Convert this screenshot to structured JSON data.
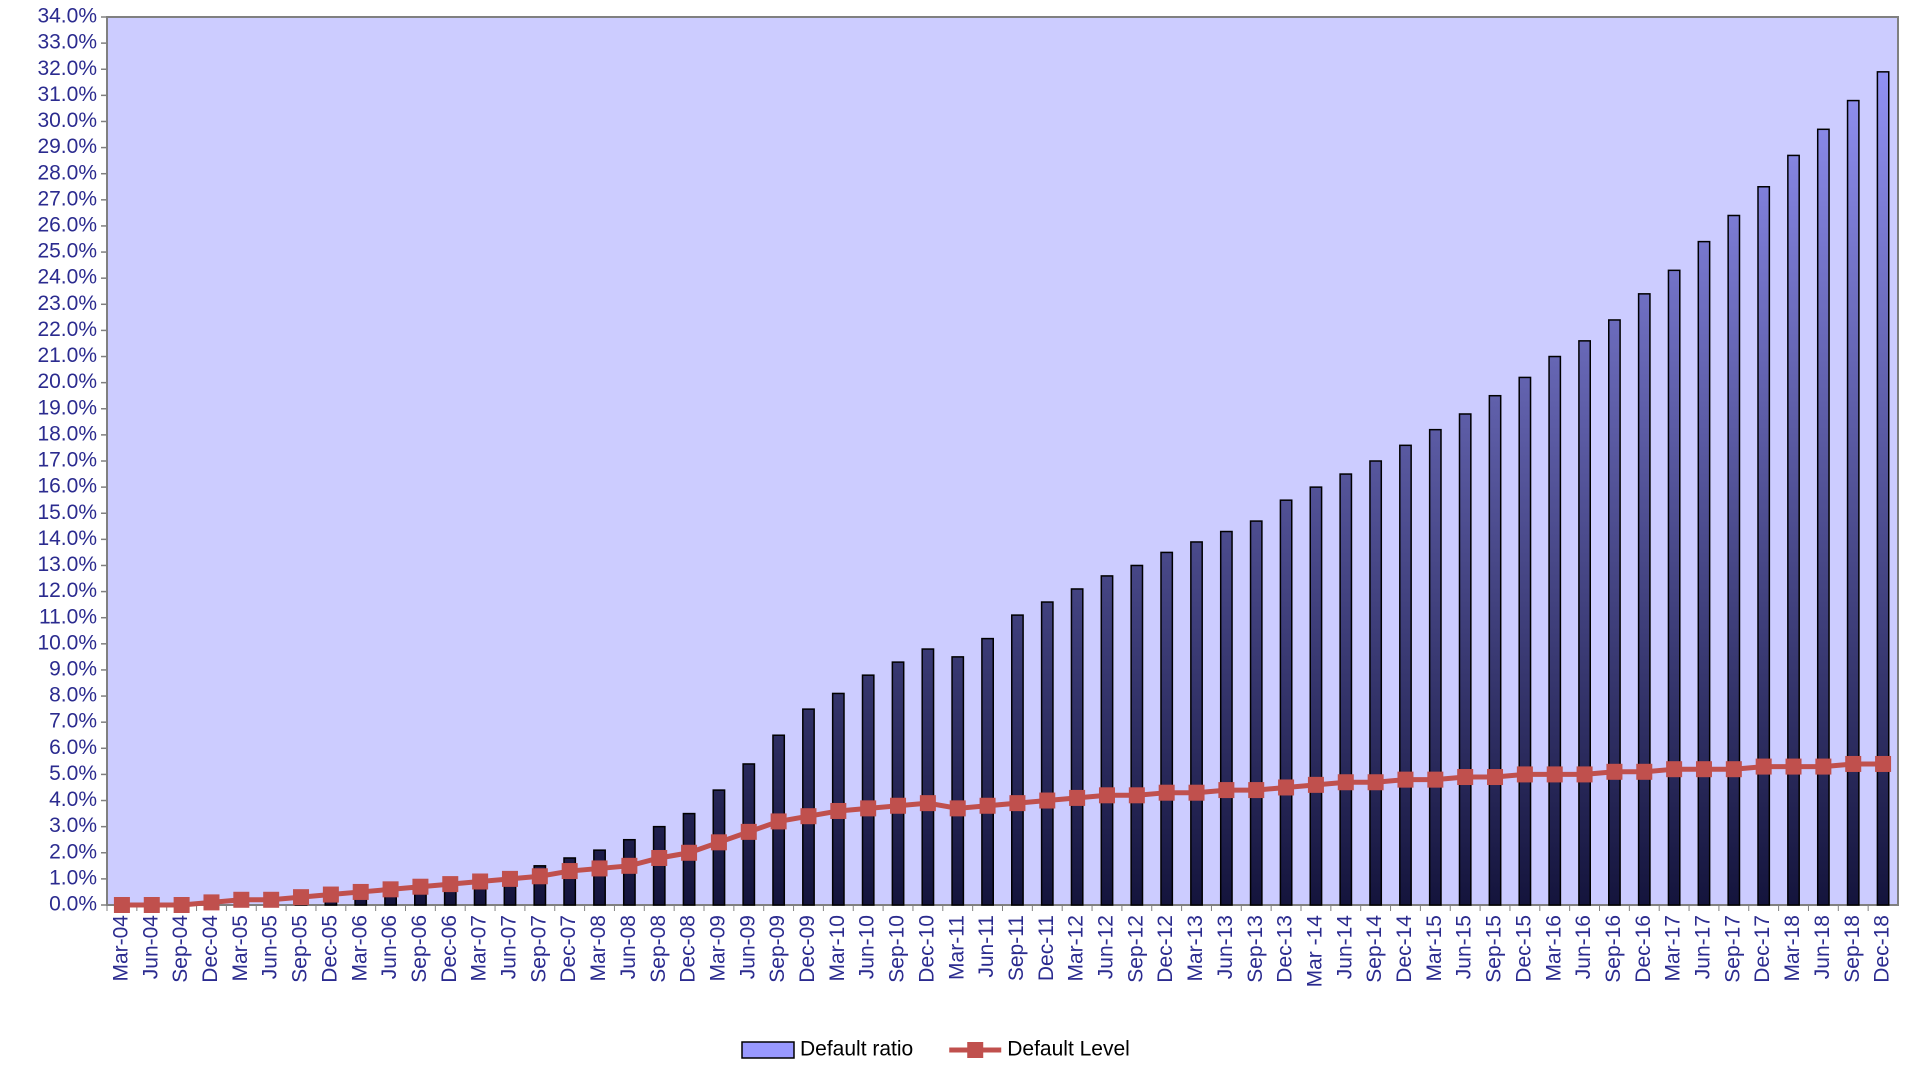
{
  "chart_data": {
    "type": "bar-line",
    "categories": [
      "Mar-04",
      "Jun-04",
      "Sep-04",
      "Dec-04",
      "Mar-05",
      "Jun-05",
      "Sep-05",
      "Dec-05",
      "Mar-06",
      "Jun-06",
      "Sep-06",
      "Dec-06",
      "Mar-07",
      "Jun-07",
      "Sep-07",
      "Dec-07",
      "Mar-08",
      "Jun-08",
      "Sep-08",
      "Dec-08",
      "Mar-09",
      "Jun-09",
      "Sep-09",
      "Dec-09",
      "Mar-10",
      "Jun-10",
      "Sep-10",
      "Dec-10",
      "Mar-11",
      "Jun-11",
      "Sep-11",
      "Dec-11",
      "Mar-12",
      "Jun-12",
      "Sep-12",
      "Dec-12",
      "Mar-13",
      "Jun-13",
      "Sep-13",
      "Dec-13",
      "Mar -14",
      "Jun-14",
      "Sep-14",
      "Dec-14",
      "Mar-15",
      "Jun-15",
      "Sep-15",
      "Dec-15",
      "Mar-16",
      "Jun-16",
      "Sep-16",
      "Dec-16",
      "Mar-17",
      "Jun-17",
      "Sep-17",
      "Dec-17",
      "Mar-18",
      "Jun-18",
      "Sep-18",
      "Dec-18"
    ],
    "series": [
      {
        "name": "Default ratio",
        "type": "bar",
        "color": "#9999ff",
        "values": [
          0,
          0,
          0,
          0,
          0.1,
          0.1,
          0.2,
          0.3,
          0.4,
          0.5,
          0.6,
          0.7,
          0.8,
          1.0,
          1.5,
          1.8,
          2.1,
          2.5,
          3.0,
          3.5,
          4.4,
          5.4,
          6.5,
          7.5,
          8.1,
          8.8,
          9.3,
          9.8,
          9.5,
          10.2,
          11.1,
          11.6,
          12.1,
          12.6,
          13.0,
          13.5,
          13.9,
          14.3,
          14.7,
          15.5,
          16.0,
          16.5,
          17.0,
          17.6,
          18.2,
          18.8,
          19.5,
          20.2,
          21.0,
          21.6,
          22.4,
          23.4,
          24.3,
          25.4,
          26.4,
          27.5,
          28.7,
          29.7,
          30.8,
          31.9
        ]
      },
      {
        "name": "Default Level",
        "type": "line",
        "color": "#c0504d",
        "values": [
          0,
          0,
          0,
          0.1,
          0.2,
          0.2,
          0.3,
          0.4,
          0.5,
          0.6,
          0.7,
          0.8,
          0.9,
          1.0,
          1.1,
          1.3,
          1.4,
          1.5,
          1.8,
          2.0,
          2.4,
          2.8,
          3.2,
          3.4,
          3.6,
          3.7,
          3.8,
          3.9,
          3.7,
          3.8,
          3.9,
          4.0,
          4.1,
          4.2,
          4.2,
          4.3,
          4.3,
          4.4,
          4.4,
          4.5,
          4.6,
          4.7,
          4.7,
          4.8,
          4.8,
          4.9,
          4.9,
          5.0,
          5.0,
          5.0,
          5.1,
          5.1,
          5.2,
          5.2,
          5.2,
          5.3,
          5.3,
          5.3,
          5.4,
          5.4
        ]
      }
    ],
    "ylim": [
      0,
      34
    ],
    "yticks": [
      {
        "value": 0,
        "label": "0.0%"
      },
      {
        "value": 1,
        "label": "1.0%"
      },
      {
        "value": 2,
        "label": "2.0%"
      },
      {
        "value": 3,
        "label": "3.0%"
      },
      {
        "value": 4,
        "label": "4.0%"
      },
      {
        "value": 5,
        "label": "5.0%"
      },
      {
        "value": 6,
        "label": "6.0%"
      },
      {
        "value": 7,
        "label": "7.0%"
      },
      {
        "value": 8,
        "label": "8.0%"
      },
      {
        "value": 9,
        "label": "9.0%"
      },
      {
        "value": 10,
        "label": "10.0%"
      },
      {
        "value": 11,
        "label": "11.0%"
      },
      {
        "value": 12,
        "label": "12.0%"
      },
      {
        "value": 13,
        "label": "13.0%"
      },
      {
        "value": 14,
        "label": "14.0%"
      },
      {
        "value": 15,
        "label": "15.0%"
      },
      {
        "value": 16,
        "label": "16.0%"
      },
      {
        "value": 17,
        "label": "17.0%"
      },
      {
        "value": 18,
        "label": "18.0%"
      },
      {
        "value": 19,
        "label": "19.0%"
      },
      {
        "value": 20,
        "label": "20.0%"
      },
      {
        "value": 21,
        "label": "21.0%"
      },
      {
        "value": 22,
        "label": "22.0%"
      },
      {
        "value": 23,
        "label": "23.0%"
      },
      {
        "value": 24,
        "label": "24.0%"
      },
      {
        "value": 25,
        "label": "25.0%"
      },
      {
        "value": 26,
        "label": "26.0%"
      },
      {
        "value": 27,
        "label": "27.0%"
      },
      {
        "value": 28,
        "label": "28.0%"
      },
      {
        "value": 29,
        "label": "29.0%"
      },
      {
        "value": 30,
        "label": "30.0%"
      },
      {
        "value": 31,
        "label": "31.0%"
      },
      {
        "value": 32,
        "label": "32.0%"
      },
      {
        "value": 33,
        "label": "33.0%"
      },
      {
        "value": 34,
        "label": "34.0%"
      }
    ],
    "grid": false,
    "legend": "bottom"
  }
}
